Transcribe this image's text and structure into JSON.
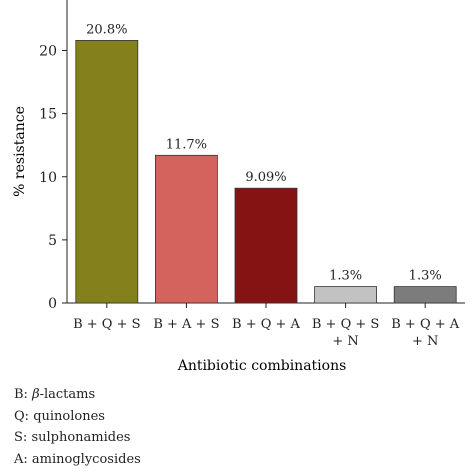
{
  "chart_data": {
    "type": "bar",
    "categories": [
      [
        "B + Q + S"
      ],
      [
        "B + A + S"
      ],
      [
        "B + Q + A"
      ],
      [
        "B + Q + S",
        "+ N"
      ],
      [
        "B + Q + A",
        "+ N"
      ]
    ],
    "values": [
      20.8,
      11.7,
      9.09,
      1.3,
      1.3
    ],
    "data_labels": [
      "20.8%",
      "11.7%",
      "9.09%",
      "1.3%",
      "1.3%"
    ],
    "colors": [
      "#84811d",
      "#d4635d",
      "#861314",
      "#c2c2c2",
      "#7c7c7c"
    ],
    "xlabel": "Antibiotic combinations",
    "ylabel": "% resistance",
    "ylim": [
      0,
      24
    ],
    "yticks": [
      0,
      5,
      10,
      15,
      20
    ],
    "grid": false,
    "legend": "none"
  },
  "legend_notes": [
    {
      "key": "B:",
      "beta": "β",
      "text": "-lactams"
    },
    {
      "key": "Q:",
      "beta": "",
      "text": "quinolones"
    },
    {
      "key": "S:",
      "beta": "",
      "text": "sulphonamides"
    },
    {
      "key": "A:",
      "beta": "",
      "text": "aminoglycosides"
    }
  ]
}
